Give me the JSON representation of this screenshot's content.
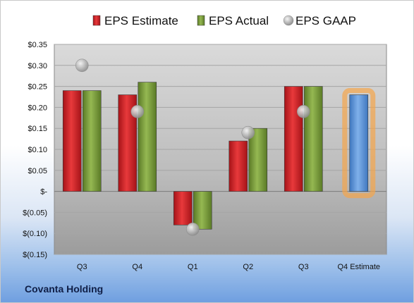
{
  "company": "Covanta Holding",
  "chart_data": {
    "type": "bar",
    "categories": [
      "Q3",
      "Q4",
      "Q1",
      "Q2",
      "Q3",
      "Q4 Estimate"
    ],
    "series": [
      {
        "name": "EPS Estimate",
        "values": [
          0.24,
          0.23,
          -0.08,
          0.12,
          0.25,
          null
        ],
        "color": "#d42127"
      },
      {
        "name": "EPS Actual",
        "values": [
          0.24,
          0.26,
          -0.09,
          0.15,
          0.25,
          null
        ],
        "color": "#7fa13a"
      },
      {
        "name": "EPS GAAP",
        "type": "scatter",
        "values": [
          0.3,
          0.19,
          -0.09,
          0.14,
          0.19,
          null
        ],
        "color": "#a9a9a9"
      }
    ],
    "estimate": {
      "category": "Q4 Estimate",
      "value": 0.23,
      "color": "#5b95d8",
      "highlight": "#f5a54a"
    },
    "ylim": [
      -0.15,
      0.35
    ],
    "yticks": [
      {
        "value": 0.35,
        "label": "$0.35"
      },
      {
        "value": 0.3,
        "label": "$0.30"
      },
      {
        "value": 0.25,
        "label": "$0.25"
      },
      {
        "value": 0.2,
        "label": "$0.20"
      },
      {
        "value": 0.15,
        "label": "$0.15"
      },
      {
        "value": 0.1,
        "label": "$0.10"
      },
      {
        "value": 0.05,
        "label": "$0.05"
      },
      {
        "value": 0.0,
        "label": "$-"
      },
      {
        "value": -0.05,
        "label": "$(0.05)"
      },
      {
        "value": -0.1,
        "label": "$(0.10)"
      },
      {
        "value": -0.15,
        "label": "$(0.15)"
      }
    ],
    "legend_position": "top"
  }
}
